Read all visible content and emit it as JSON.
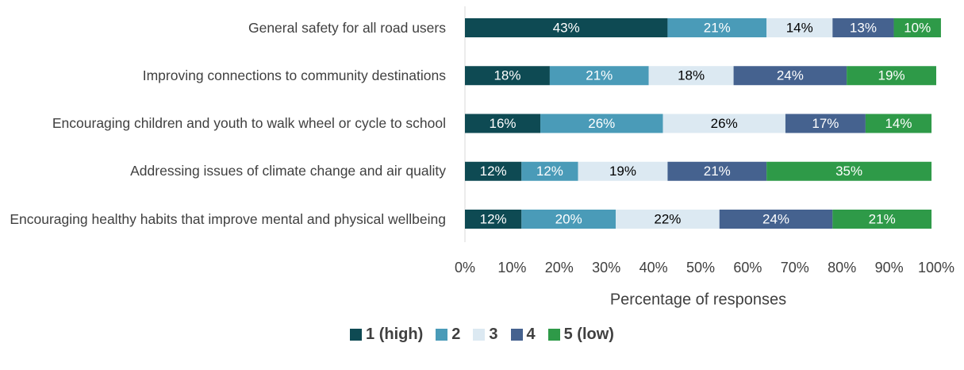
{
  "chart_data": {
    "type": "bar",
    "orientation": "horizontal",
    "stacked": true,
    "categories": [
      "General safety for all road users",
      "Improving connections to community destinations",
      "Encouraging children and youth to walk wheel or cycle to school",
      "Addressing issues of climate change and air quality",
      "Encouraging healthy habits that improve mental and physical wellbeing"
    ],
    "series": [
      {
        "name": "1 (high)",
        "color": "#0e4a53",
        "label_color": "#ffffff",
        "values": [
          43,
          18,
          16,
          12,
          12
        ],
        "value_labels": [
          "43%",
          "18%",
          "16%",
          "12%",
          "12%"
        ]
      },
      {
        "name": "2",
        "color": "#4a9bb8",
        "label_color": "#ffffff",
        "values": [
          21,
          21,
          26,
          12,
          20
        ],
        "value_labels": [
          "21%",
          "21%",
          "26%",
          "12%",
          "20%"
        ]
      },
      {
        "name": "3",
        "color": "#dce9f2",
        "label_color": "#000000",
        "values": [
          14,
          18,
          26,
          19,
          22
        ],
        "value_labels": [
          "14%",
          "18%",
          "26%",
          "19%",
          "22%"
        ]
      },
      {
        "name": "4",
        "color": "#45628f",
        "label_color": "#ffffff",
        "values": [
          13,
          24,
          17,
          21,
          24
        ],
        "value_labels": [
          "13%",
          "24%",
          "17%",
          "21%",
          "24%"
        ]
      },
      {
        "name": "5 (low)",
        "color": "#2e9a48",
        "label_color": "#ffffff",
        "values": [
          10,
          19,
          14,
          35,
          21
        ],
        "value_labels": [
          "10%",
          "19%",
          "14%",
          "35%",
          "21%"
        ]
      }
    ],
    "xlim": [
      0,
      100
    ],
    "xticks": [
      {
        "value": 0,
        "label": "0%"
      },
      {
        "value": 10,
        "label": "10%"
      },
      {
        "value": 20,
        "label": "20%"
      },
      {
        "value": 30,
        "label": "30%"
      },
      {
        "value": 40,
        "label": "40%"
      },
      {
        "value": 50,
        "label": "50%"
      },
      {
        "value": 60,
        "label": "60%"
      },
      {
        "value": 70,
        "label": "70%"
      },
      {
        "value": 80,
        "label": "80%"
      },
      {
        "value": 90,
        "label": "90%"
      },
      {
        "value": 100,
        "label": "100%"
      }
    ],
    "xlabel": "Percentage of responses",
    "legend": "bottom"
  }
}
